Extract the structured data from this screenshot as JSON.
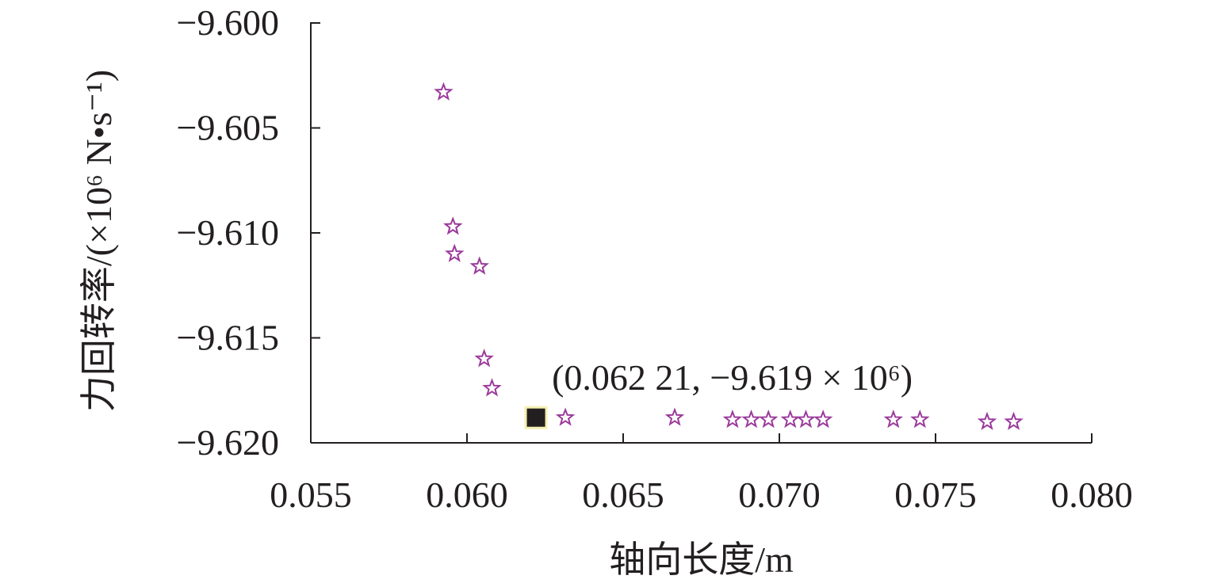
{
  "chart_data": {
    "type": "scatter",
    "xlabel": "轴向长度/m",
    "ylabel": "力回转率/(×10⁶ N•s⁻¹)",
    "xlim": [
      0.055,
      0.08
    ],
    "ylim": [
      -9.62,
      -9.6
    ],
    "x_ticks": [
      "0.055",
      "0.060",
      "0.065",
      "0.070",
      "0.075",
      "0.080"
    ],
    "y_ticks": [
      "−9.600",
      "−9.605",
      "−9.610",
      "−9.615",
      "−9.620"
    ],
    "grid": false,
    "series": [
      {
        "marker": "star",
        "color": "#9b3a9b",
        "points": [
          {
            "x": 0.05925,
            "y": -9.6033
          },
          {
            "x": 0.05955,
            "y": -9.6097
          },
          {
            "x": 0.0596,
            "y": -9.611
          },
          {
            "x": 0.0604,
            "y": -9.6116
          },
          {
            "x": 0.06055,
            "y": -9.616
          },
          {
            "x": 0.0608,
            "y": -9.6174
          },
          {
            "x": 0.06315,
            "y": -9.6188
          },
          {
            "x": 0.06665,
            "y": -9.6188
          },
          {
            "x": 0.0685,
            "y": -9.6189
          },
          {
            "x": 0.0691,
            "y": -9.6189
          },
          {
            "x": 0.06965,
            "y": -9.6189
          },
          {
            "x": 0.07035,
            "y": -9.6189
          },
          {
            "x": 0.07085,
            "y": -9.6189
          },
          {
            "x": 0.0714,
            "y": -9.6189
          },
          {
            "x": 0.07365,
            "y": -9.6189
          },
          {
            "x": 0.0745,
            "y": -9.6189
          },
          {
            "x": 0.07665,
            "y": -9.619
          },
          {
            "x": 0.0775,
            "y": -9.619
          }
        ]
      },
      {
        "marker": "square",
        "color": "#231f20",
        "highlight_color": "#f4f0b0",
        "points": [
          {
            "x": 0.06221,
            "y": -9.6188
          }
        ]
      }
    ],
    "annotations": [
      {
        "text": "(0.062 21, −9.619 × 10⁶)",
        "x": 0.06221,
        "y": -9.6188
      }
    ]
  }
}
